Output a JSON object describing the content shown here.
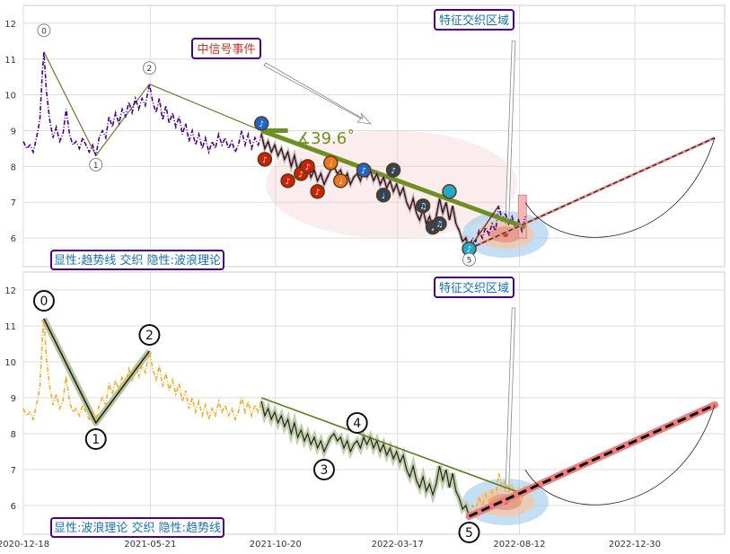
{
  "chart_data": [
    {
      "type": "line",
      "ylim": [
        5.2,
        12.5
      ],
      "yticks": [
        "6",
        "7",
        "8",
        "9",
        "10",
        "11",
        "12"
      ],
      "x_start": "2020-12-18",
      "x_end": "2023-04-18",
      "price_series": {
        "color": "#4b0082",
        "points": [
          [
            "2020-12-18",
            8.7
          ],
          [
            "2020-12-22",
            8.5
          ],
          [
            "2020-12-26",
            8.6
          ],
          [
            "2020-12-30",
            8.4
          ],
          [
            "2021-01-03",
            8.8
          ],
          [
            "2021-01-07",
            9.3
          ],
          [
            "2021-01-10",
            10.6
          ],
          [
            "2021-01-12",
            11.2
          ],
          [
            "2021-01-15",
            10.1
          ],
          [
            "2021-01-19",
            9.3
          ],
          [
            "2021-01-23",
            8.8
          ],
          [
            "2021-01-27",
            9.1
          ],
          [
            "2021-01-31",
            8.7
          ],
          [
            "2021-02-04",
            8.9
          ],
          [
            "2021-02-08",
            9.6
          ],
          [
            "2021-02-12",
            8.9
          ],
          [
            "2021-02-16",
            8.6
          ],
          [
            "2021-02-20",
            8.7
          ],
          [
            "2021-02-24",
            8.5
          ],
          [
            "2021-02-28",
            8.8
          ],
          [
            "2021-03-04",
            8.6
          ],
          [
            "2021-03-08",
            8.4
          ],
          [
            "2021-03-12",
            8.6
          ],
          [
            "2021-03-16",
            8.3
          ],
          [
            "2021-03-20",
            8.8
          ],
          [
            "2021-03-24",
            9.0
          ],
          [
            "2021-03-28",
            8.8
          ],
          [
            "2021-04-01",
            9.4
          ],
          [
            "2021-04-05",
            9.1
          ],
          [
            "2021-04-09",
            9.5
          ],
          [
            "2021-04-13",
            9.2
          ],
          [
            "2021-04-17",
            9.6
          ],
          [
            "2021-04-21",
            9.4
          ],
          [
            "2021-04-25",
            9.8
          ],
          [
            "2021-04-29",
            9.5
          ],
          [
            "2021-05-03",
            9.9
          ],
          [
            "2021-05-07",
            9.6
          ],
          [
            "2021-05-11",
            9.9
          ],
          [
            "2021-05-15",
            9.7
          ],
          [
            "2021-05-20",
            10.3
          ],
          [
            "2021-05-24",
            9.8
          ],
          [
            "2021-05-28",
            9.5
          ],
          [
            "2021-06-01",
            9.9
          ],
          [
            "2021-06-05",
            9.3
          ],
          [
            "2021-06-09",
            9.7
          ],
          [
            "2021-06-13",
            9.2
          ],
          [
            "2021-06-17",
            9.5
          ],
          [
            "2021-06-21",
            9.1
          ],
          [
            "2021-06-25",
            9.4
          ],
          [
            "2021-06-29",
            8.9
          ],
          [
            "2021-07-03",
            9.2
          ],
          [
            "2021-07-07",
            8.7
          ],
          [
            "2021-07-11",
            9.0
          ],
          [
            "2021-07-15",
            8.6
          ],
          [
            "2021-07-19",
            8.9
          ],
          [
            "2021-07-23",
            8.5
          ],
          [
            "2021-07-27",
            8.8
          ],
          [
            "2021-07-31",
            8.4
          ],
          [
            "2021-08-04",
            8.7
          ],
          [
            "2021-08-08",
            8.5
          ],
          [
            "2021-08-12",
            8.9
          ],
          [
            "2021-08-16",
            8.6
          ],
          [
            "2021-08-20",
            8.8
          ],
          [
            "2021-08-24",
            8.5
          ],
          [
            "2021-08-28",
            8.7
          ],
          [
            "2021-09-01",
            8.4
          ],
          [
            "2021-09-05",
            8.6
          ],
          [
            "2021-09-09",
            9.0
          ],
          [
            "2021-09-13",
            8.6
          ],
          [
            "2021-09-17",
            8.9
          ],
          [
            "2021-09-21",
            8.5
          ],
          [
            "2021-09-25",
            8.8
          ],
          [
            "2021-09-29",
            8.6
          ],
          [
            "2021-10-03",
            8.9
          ],
          [
            "2021-10-07",
            8.5
          ],
          [
            "2021-10-11",
            8.7
          ],
          [
            "2021-10-15",
            8.4
          ],
          [
            "2021-10-19",
            8.6
          ],
          [
            "2021-10-23",
            8.3
          ],
          [
            "2021-10-27",
            8.5
          ],
          [
            "2021-10-31",
            8.2
          ],
          [
            "2021-11-04",
            8.4
          ],
          [
            "2021-11-08",
            8.0
          ],
          [
            "2021-11-12",
            8.3
          ],
          [
            "2021-11-16",
            7.9
          ],
          [
            "2021-11-20",
            8.1
          ],
          [
            "2021-11-24",
            7.8
          ],
          [
            "2021-11-28",
            8.0
          ],
          [
            "2021-12-02",
            7.7
          ],
          [
            "2021-12-06",
            7.9
          ],
          [
            "2021-12-10",
            7.6
          ],
          [
            "2021-12-14",
            7.8
          ],
          [
            "2021-12-18",
            7.5
          ],
          [
            "2021-12-22",
            7.7
          ],
          [
            "2021-12-26",
            7.9
          ],
          [
            "2021-12-30",
            8.0
          ],
          [
            "2022-01-03",
            7.8
          ],
          [
            "2022-01-07",
            7.9
          ],
          [
            "2022-01-11",
            7.6
          ],
          [
            "2022-01-15",
            7.8
          ],
          [
            "2022-01-19",
            7.5
          ],
          [
            "2022-01-23",
            7.7
          ],
          [
            "2022-01-27",
            7.8
          ],
          [
            "2022-01-31",
            7.6
          ],
          [
            "2022-02-04",
            7.9
          ],
          [
            "2022-02-08",
            7.7
          ],
          [
            "2022-02-12",
            7.9
          ],
          [
            "2022-02-16",
            7.6
          ],
          [
            "2022-02-20",
            7.8
          ],
          [
            "2022-02-24",
            7.5
          ],
          [
            "2022-02-28",
            7.7
          ],
          [
            "2022-03-04",
            7.4
          ],
          [
            "2022-03-08",
            7.6
          ],
          [
            "2022-03-12",
            7.3
          ],
          [
            "2022-03-16",
            7.5
          ],
          [
            "2022-03-20",
            7.2
          ],
          [
            "2022-03-24",
            7.4
          ],
          [
            "2022-03-28",
            7.0
          ],
          [
            "2022-04-01",
            6.8
          ],
          [
            "2022-04-05",
            7.1
          ],
          [
            "2022-04-09",
            6.7
          ],
          [
            "2022-04-13",
            6.5
          ],
          [
            "2022-04-17",
            6.8
          ],
          [
            "2022-04-21",
            6.4
          ],
          [
            "2022-04-25",
            6.6
          ],
          [
            "2022-04-29",
            6.3
          ],
          [
            "2022-05-03",
            6.6
          ],
          [
            "2022-05-07",
            7.1
          ],
          [
            "2022-05-11",
            6.7
          ],
          [
            "2022-05-15",
            7.0
          ],
          [
            "2022-05-19",
            6.5
          ],
          [
            "2022-05-23",
            6.9
          ],
          [
            "2022-05-27",
            6.4
          ],
          [
            "2022-05-31",
            6.2
          ],
          [
            "2022-06-04",
            5.9
          ],
          [
            "2022-06-08",
            6.0
          ],
          [
            "2022-06-12",
            5.7
          ],
          [
            "2022-06-16",
            6.0
          ],
          [
            "2022-06-20",
            5.9
          ],
          [
            "2022-06-24",
            6.2
          ],
          [
            "2022-06-28",
            6.0
          ],
          [
            "2022-07-02",
            6.3
          ],
          [
            "2022-07-06",
            6.1
          ],
          [
            "2022-07-10",
            6.4
          ],
          [
            "2022-07-14",
            6.2
          ],
          [
            "2022-07-18",
            6.9
          ],
          [
            "2022-07-22",
            6.5
          ],
          [
            "2022-07-26",
            6.7
          ],
          [
            "2022-07-30",
            6.4
          ],
          [
            "2022-08-03",
            6.6
          ],
          [
            "2022-08-07",
            6.3
          ],
          [
            "2022-08-11",
            6.5
          ],
          [
            "2022-08-15",
            6.2
          ],
          [
            "2022-08-19",
            6.6
          ]
        ]
      },
      "wave_points": [
        {
          "label": "0",
          "date": "2021-01-12",
          "value": 11.2
        },
        {
          "label": "1",
          "date": "2021-03-16",
          "value": 8.3
        },
        {
          "label": "2",
          "date": "2021-05-20",
          "value": 10.3
        },
        {
          "label": "3",
          "date": "2021-12-18",
          "value": 7.5
        },
        {
          "label": "4",
          "date": "2022-01-27",
          "value": 7.8
        },
        {
          "label": "5",
          "date": "2022-06-12",
          "value": 5.7
        }
      ],
      "trend_upper": [
        [
          "2021-10-03",
          9.0
        ],
        [
          "2022-08-19",
          6.3
        ]
      ],
      "trend_break_short": [
        [
          "2021-10-03",
          9.0
        ],
        [
          "2021-11-04",
          9.0
        ]
      ],
      "projection": [
        [
          "2022-06-12",
          5.7
        ],
        [
          "2023-04-06",
          8.8
        ]
      ],
      "angle_label": "∡39.6˚",
      "event_markers": [
        {
          "date": "2021-10-07",
          "value": 8.2,
          "color": "#cc2200",
          "glyph": "♪"
        },
        {
          "date": "2021-11-04",
          "value": 7.6,
          "color": "#cc2200",
          "glyph": "♪"
        },
        {
          "date": "2021-11-20",
          "value": 7.8,
          "color": "#cc2200",
          "glyph": "♪"
        },
        {
          "date": "2021-11-28",
          "value": 8.0,
          "color": "#cc2200",
          "glyph": "♪"
        },
        {
          "date": "2021-12-10",
          "value": 7.3,
          "color": "#cc2200",
          "glyph": "♪"
        },
        {
          "date": "2021-12-26",
          "value": 8.1,
          "color": "#ee7722",
          "glyph": "♩"
        },
        {
          "date": "2022-01-07",
          "value": 7.6,
          "color": "#ee7722",
          "glyph": "♩"
        },
        {
          "date": "2022-02-04",
          "value": 7.9,
          "color": "#1e66cc",
          "glyph": "♪"
        },
        {
          "date": "2022-02-28",
          "value": 7.2,
          "color": "#334455",
          "glyph": "♩"
        },
        {
          "date": "2022-03-12",
          "value": 7.9,
          "color": "#334455",
          "glyph": "♪"
        },
        {
          "date": "2022-04-17",
          "value": 6.9,
          "color": "#334455",
          "glyph": "♫"
        },
        {
          "date": "2022-04-29",
          "value": 6.3,
          "color": "#334455",
          "glyph": "♩"
        },
        {
          "date": "2022-05-07",
          "value": 6.4,
          "color": "#334455",
          "glyph": "♫"
        },
        {
          "date": "2022-05-19",
          "value": 7.3,
          "color": "#22aacc",
          "glyph": ""
        },
        {
          "date": "2022-06-12",
          "value": 5.7,
          "color": "#22aacc",
          "glyph": "♪"
        }
      ],
      "event_marker_first": {
        "date": "2021-10-03",
        "value": 9.2,
        "color": "#1e66cc",
        "glyph": "♪"
      },
      "annotations": {
        "zone_label": "特征交织区域",
        "event_label": "中信号事件",
        "legend": "显性:趋势线 交织 隐性:波浪理论"
      }
    },
    {
      "type": "line",
      "ylim": [
        5.2,
        12.5
      ],
      "yticks": [
        "6",
        "7",
        "8",
        "9",
        "10",
        "11",
        "12"
      ],
      "xticks": [
        "2020-12-18",
        "2021-05-21",
        "2021-10-20",
        "2022-03-17",
        "2022-08-12",
        "2022-12-30"
      ],
      "price_series": {
        "color": "#e8b032"
      },
      "annotations": {
        "zone_label": "特征交织区域",
        "legend": "显性:波浪理论 交织 隐性:趋势线"
      }
    }
  ]
}
